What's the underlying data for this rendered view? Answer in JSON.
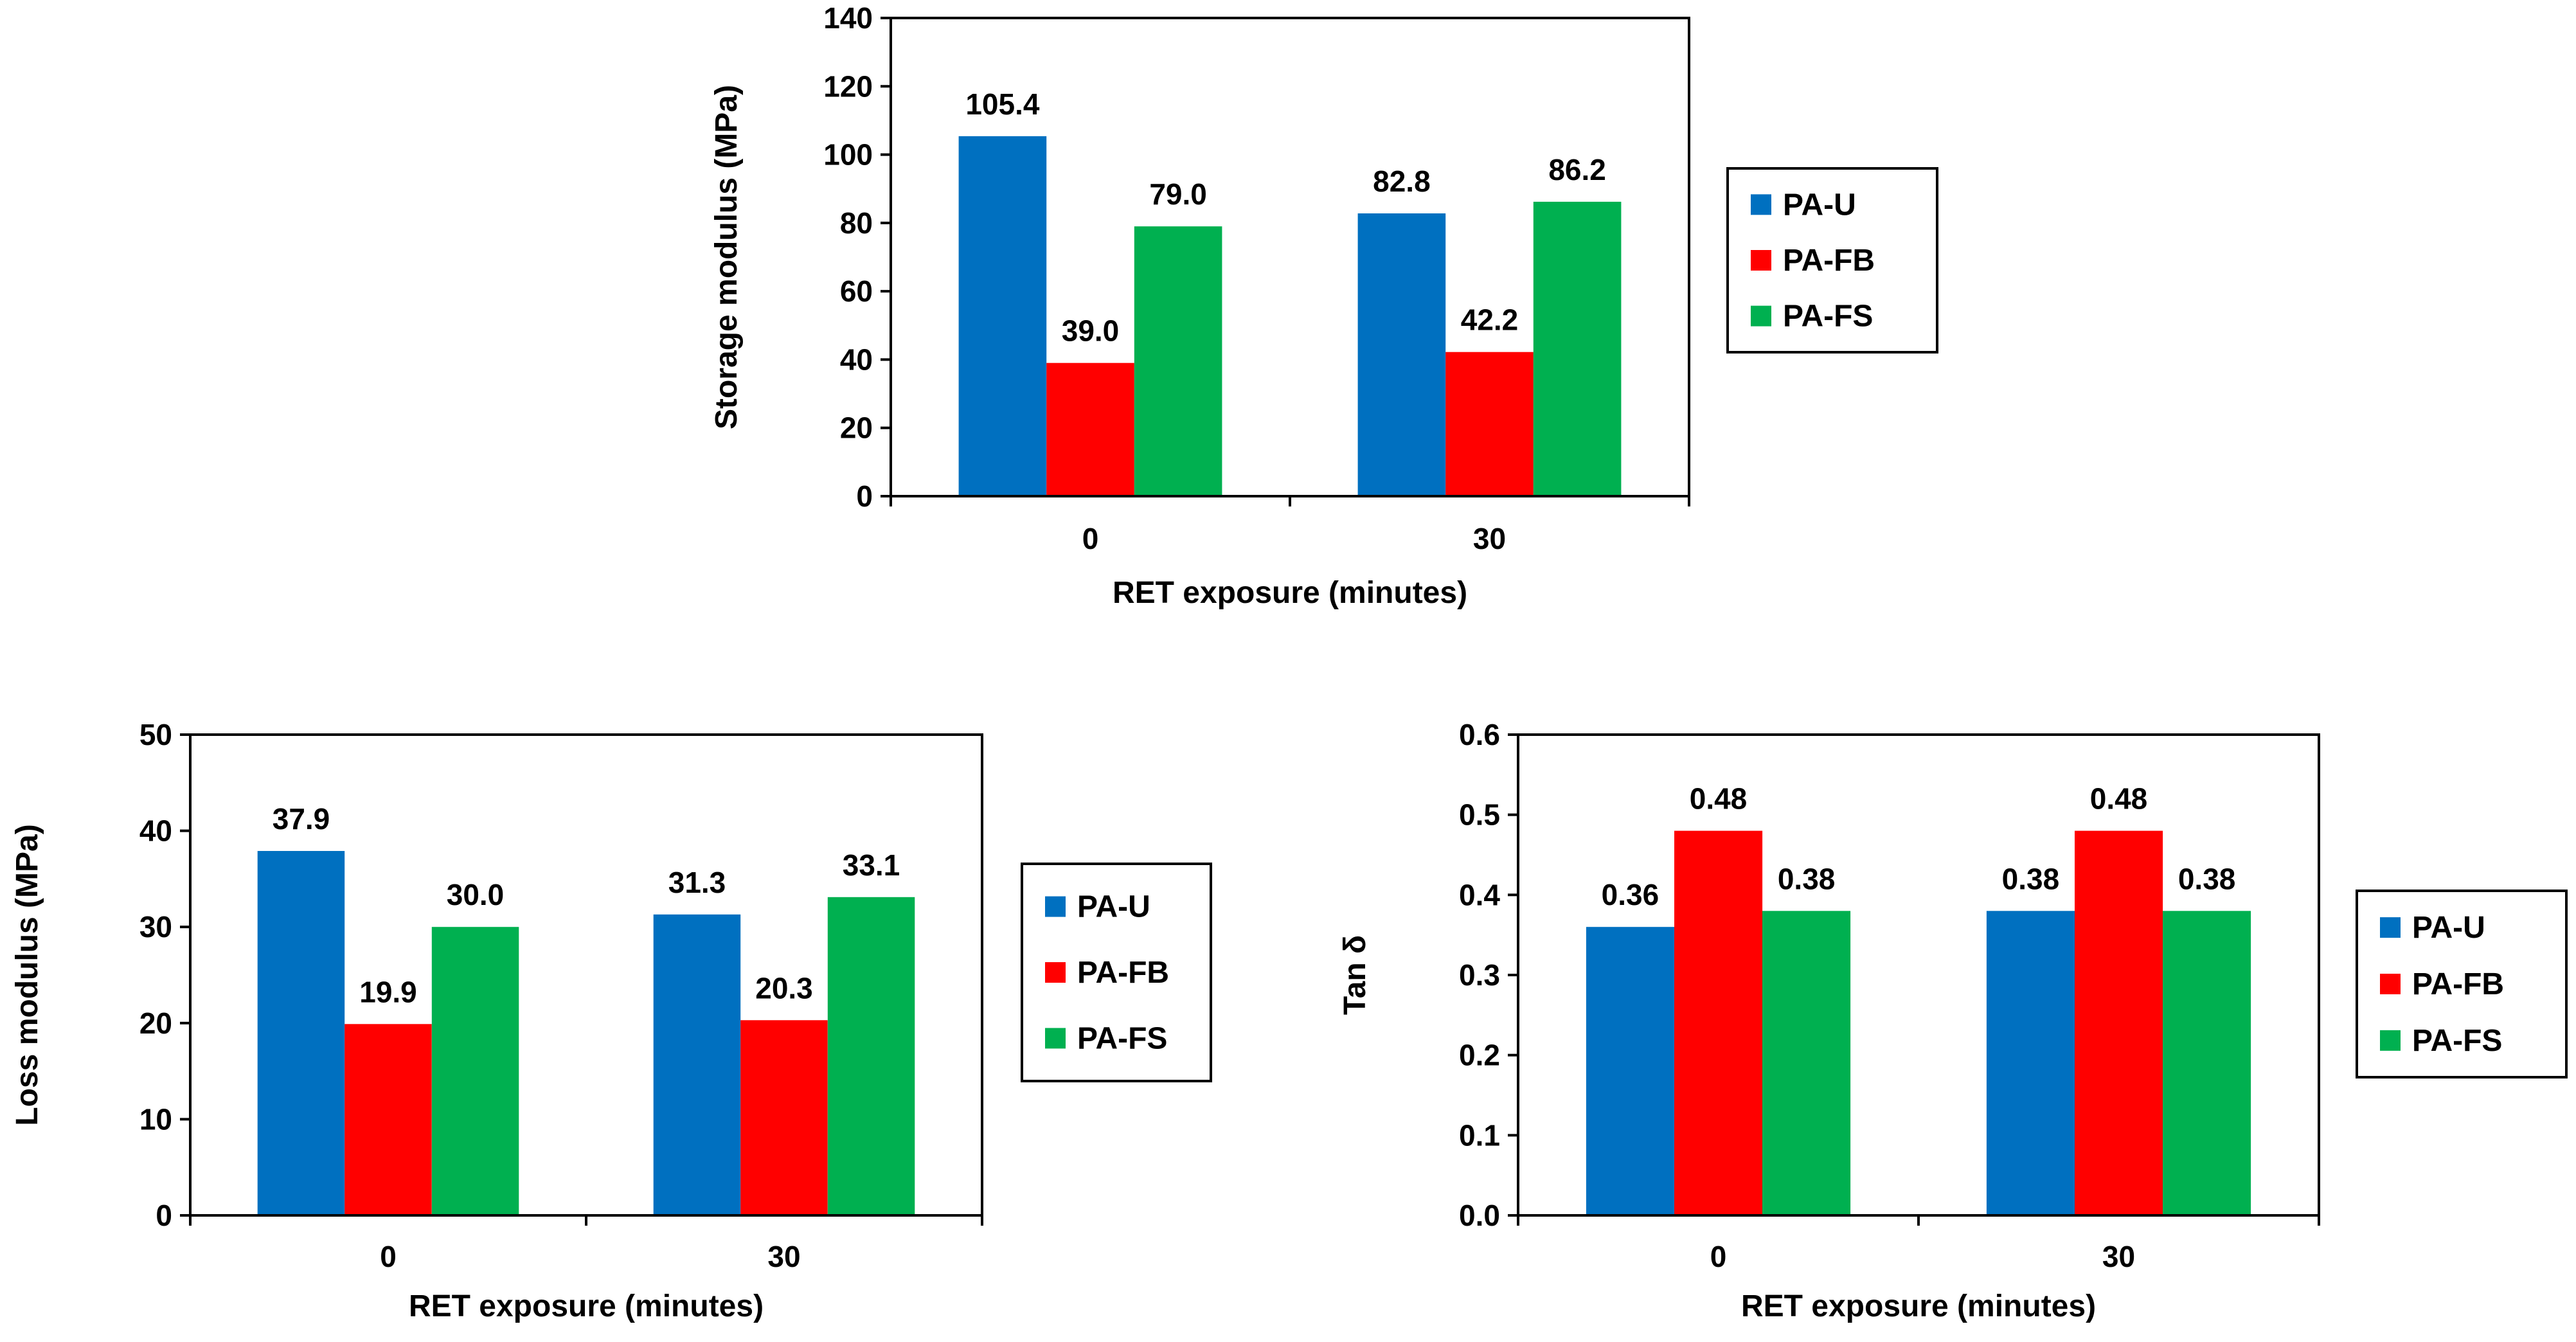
{
  "colors": {
    "PA-U": "#0070C0",
    "PA-FB": "#FF0000",
    "PA-FS": "#00B050"
  },
  "chart_data": [
    {
      "id": "storage-modulus-chart",
      "type": "bar",
      "title": "",
      "xlabel": "RET exposure (minutes)",
      "ylabel": "Storage modulus (MPa)",
      "categories": [
        "0",
        "30"
      ],
      "ylim": [
        0,
        140
      ],
      "yticks": [
        0,
        20,
        40,
        60,
        80,
        100,
        120,
        140
      ],
      "ytick_labels": [
        "0",
        "20",
        "40",
        "60",
        "80",
        "100",
        "120",
        "140"
      ],
      "grid": false,
      "legend_position": "right",
      "series": [
        {
          "name": "PA-U",
          "values": [
            105.4,
            82.8
          ],
          "labels": [
            "105.4",
            "82.8"
          ]
        },
        {
          "name": "PA-FB",
          "values": [
            39.0,
            42.2
          ],
          "labels": [
            "39.0",
            "42.2"
          ]
        },
        {
          "name": "PA-FS",
          "values": [
            79.0,
            86.2
          ],
          "labels": [
            "79.0",
            "86.2"
          ]
        }
      ]
    },
    {
      "id": "loss-modulus-chart",
      "type": "bar",
      "title": "",
      "xlabel": "RET exposure (minutes)",
      "ylabel": "Loss modulus (MPa)",
      "categories": [
        "0",
        "30"
      ],
      "ylim": [
        0,
        50
      ],
      "yticks": [
        0,
        10,
        20,
        30,
        40,
        50
      ],
      "ytick_labels": [
        "0",
        "10",
        "20",
        "30",
        "40",
        "50"
      ],
      "grid": false,
      "legend_position": "right",
      "series": [
        {
          "name": "PA-U",
          "values": [
            37.9,
            31.3
          ],
          "labels": [
            "37.9",
            "31.3"
          ]
        },
        {
          "name": "PA-FB",
          "values": [
            19.9,
            20.3
          ],
          "labels": [
            "19.9",
            "20.3"
          ]
        },
        {
          "name": "PA-FS",
          "values": [
            30.0,
            33.1
          ],
          "labels": [
            "30.0",
            "33.1"
          ]
        }
      ]
    },
    {
      "id": "tan-delta-chart",
      "type": "bar",
      "title": "",
      "xlabel": "RET exposure (minutes)",
      "ylabel": "Tan δ",
      "categories": [
        "0",
        "30"
      ],
      "ylim": [
        0,
        0.6
      ],
      "yticks": [
        0,
        0.1,
        0.2,
        0.3,
        0.4,
        0.5,
        0.6
      ],
      "ytick_labels": [
        "0.0",
        "0.1",
        "0.2",
        "0.3",
        "0.4",
        "0.5",
        "0.6"
      ],
      "grid": false,
      "legend_position": "right",
      "series": [
        {
          "name": "PA-U",
          "values": [
            0.36,
            0.38
          ],
          "labels": [
            "0.36",
            "0.38"
          ]
        },
        {
          "name": "PA-FB",
          "values": [
            0.48,
            0.48
          ],
          "labels": [
            "0.48",
            "0.48"
          ]
        },
        {
          "name": "PA-FS",
          "values": [
            0.38,
            0.38
          ],
          "labels": [
            "0.38",
            "0.38"
          ]
        }
      ]
    }
  ]
}
